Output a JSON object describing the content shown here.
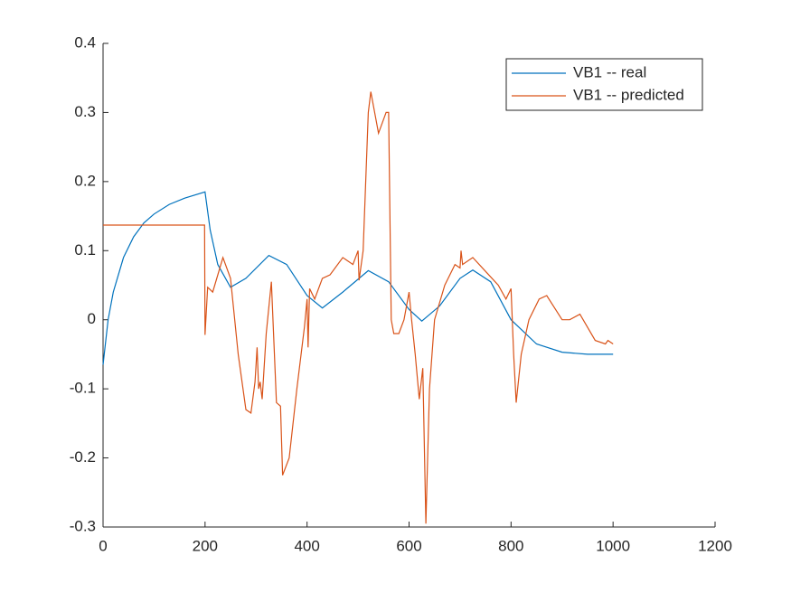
{
  "chart_data": {
    "type": "line",
    "xlim": [
      0,
      1200
    ],
    "xticks": [
      0,
      200,
      400,
      600,
      800,
      1000,
      1200
    ],
    "ylim": [
      -0.3,
      0.4
    ],
    "yticks": [
      -0.3,
      -0.2,
      -0.1,
      0,
      0.1,
      0.2,
      0.3,
      0.4
    ],
    "legend": "northeast",
    "series": [
      {
        "name": "VB1 -- real",
        "color": "#0072BD",
        "x": [
          0,
          10,
          20,
          40,
          60,
          80,
          100,
          130,
          160,
          200,
          210,
          225,
          250,
          280,
          325,
          360,
          400,
          430,
          470,
          520,
          560,
          600,
          625,
          660,
          700,
          725,
          760,
          800,
          850,
          900,
          950,
          1000
        ],
        "values": [
          -0.065,
          0.0,
          0.04,
          0.09,
          0.12,
          0.14,
          0.153,
          0.167,
          0.176,
          0.185,
          0.13,
          0.08,
          0.047,
          0.06,
          0.093,
          0.08,
          0.035,
          0.017,
          0.04,
          0.071,
          0.055,
          0.015,
          -0.002,
          0.02,
          0.06,
          0.072,
          0.055,
          0.0,
          -0.035,
          -0.047,
          -0.05,
          -0.05
        ]
      },
      {
        "name": "VB1 -- predicted",
        "color": "#D95319",
        "x": [
          0,
          199,
          200,
          205,
          215,
          235,
          250,
          265,
          280,
          290,
          298,
          302,
          305,
          308,
          312,
          320,
          330,
          340,
          348,
          352,
          365,
          380,
          395,
          400,
          402,
          405,
          415,
          430,
          445,
          470,
          490,
          500,
          502,
          510,
          520,
          525,
          540,
          555,
          560,
          565,
          570,
          580,
          590,
          600,
          605,
          612,
          620,
          627,
          633,
          640,
          650,
          670,
          690,
          700,
          702,
          705,
          725,
          750,
          775,
          790,
          800,
          805,
          810,
          820,
          835,
          855,
          870,
          900,
          915,
          935,
          965,
          985,
          990,
          1000
        ],
        "values": [
          0.137,
          0.137,
          -0.022,
          0.047,
          0.04,
          0.09,
          0.06,
          -0.05,
          -0.13,
          -0.135,
          -0.09,
          -0.04,
          -0.1,
          -0.09,
          -0.115,
          -0.02,
          0.055,
          -0.12,
          -0.125,
          -0.225,
          -0.2,
          -0.1,
          -0.01,
          0.03,
          -0.04,
          0.045,
          0.03,
          0.06,
          0.065,
          0.09,
          0.08,
          0.1,
          0.057,
          0.1,
          0.3,
          0.33,
          0.27,
          0.3,
          0.3,
          0.0,
          -0.02,
          -0.02,
          0.0,
          0.04,
          0.0,
          -0.05,
          -0.115,
          -0.07,
          -0.295,
          -0.1,
          0.0,
          0.05,
          0.08,
          0.075,
          0.1,
          0.08,
          0.09,
          0.07,
          0.05,
          0.03,
          0.045,
          -0.05,
          -0.12,
          -0.05,
          0.0,
          0.03,
          0.035,
          0.0,
          0.0,
          0.008,
          -0.03,
          -0.035,
          -0.03,
          -0.035
        ]
      }
    ]
  }
}
